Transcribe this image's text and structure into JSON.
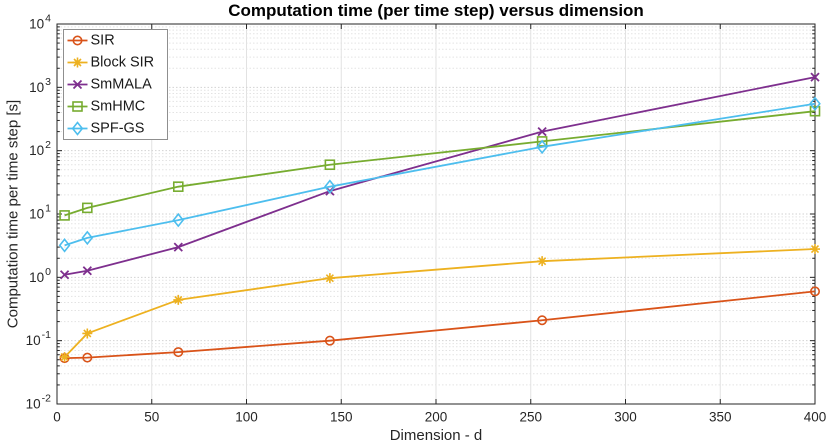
{
  "figure": {
    "title": "Computation time (per time step) versus dimension",
    "xlabel": "Dimension - d",
    "ylabel": "Computation time per time step [s]"
  },
  "colors": {
    "axis": "#262626",
    "tick_label": "#262626",
    "grid_vertical": "#e2e2e2",
    "grid_major_horizontal": "#d2d2d2",
    "grid_minor_horizontal": "#e3e3e3",
    "legend_border": "#8f8f8f",
    "legend_background": "#ffffff",
    "background": "#ffffff"
  },
  "chart_data": {
    "type": "line",
    "title": "Computation time (per time step) versus dimension",
    "xlabel": "Dimension - d",
    "ylabel": "Computation time per time step [s]",
    "x_scale": "linear",
    "y_scale": "log10",
    "xlim": [
      0,
      400
    ],
    "ylim": [
      0.01,
      10000
    ],
    "xticks": [
      0,
      50,
      100,
      150,
      200,
      250,
      300,
      350,
      400
    ],
    "ytick_exponents": [
      -2,
      -1,
      0,
      1,
      2,
      3,
      4
    ],
    "grid": "on",
    "minor_grid": "on",
    "legend_position": "top-left",
    "x": [
      4,
      16,
      64,
      144,
      256,
      400
    ],
    "series": [
      {
        "name": "SIR",
        "color": "#D95319",
        "marker": "circle",
        "values": [
          0.053,
          0.054,
          0.066,
          0.1,
          0.21,
          0.6
        ]
      },
      {
        "name": "Block SIR",
        "color": "#EDB120",
        "marker": "asterisk",
        "values": [
          0.055,
          0.13,
          0.44,
          0.97,
          1.8,
          2.8
        ]
      },
      {
        "name": "SmMALA",
        "color": "#7E2F8E",
        "marker": "x",
        "values": [
          1.1,
          1.27,
          3.0,
          23,
          200,
          1450
        ]
      },
      {
        "name": "SmHMC",
        "color": "#77AC30",
        "marker": "square",
        "values": [
          9.5,
          12.5,
          27,
          60,
          140,
          420
        ]
      },
      {
        "name": "SPF-GS",
        "color": "#4DBEEE",
        "marker": "diamond",
        "values": [
          3.2,
          4.2,
          8.0,
          27,
          115,
          550
        ]
      }
    ]
  }
}
